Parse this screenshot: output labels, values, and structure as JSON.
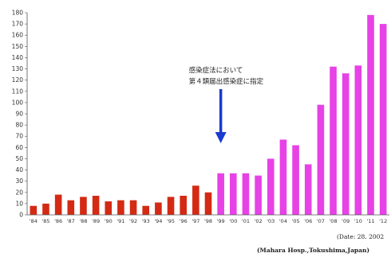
{
  "chart_data": {
    "type": "bar",
    "title": "",
    "xlabel": "",
    "ylabel": "",
    "ylim": [
      0,
      180
    ],
    "yticks": [
      0,
      10,
      20,
      30,
      40,
      50,
      60,
      70,
      80,
      90,
      100,
      110,
      120,
      130,
      140,
      150,
      160,
      170,
      180
    ],
    "grid": false,
    "categories": [
      "'84",
      "'85",
      "'86",
      "'87",
      "'88",
      "'89",
      "'90",
      "'91",
      "'92",
      "'93",
      "'94",
      "'95",
      "'96",
      "'97",
      "'98",
      "'99",
      "'00",
      "'01",
      "'02",
      "'03",
      "'04",
      "'05",
      "'06",
      "'07",
      "'08",
      "'09",
      "'10",
      "'11",
      "'12"
    ],
    "values": [
      8,
      10,
      18,
      13,
      16,
      17,
      12,
      13,
      13,
      8,
      11,
      16,
      17,
      26,
      20,
      37,
      37,
      37,
      35,
      50,
      67,
      62,
      45,
      98,
      132,
      126,
      133,
      178,
      170
    ],
    "colors": [
      "#d42a14",
      "#d42a14",
      "#d42a14",
      "#d42a14",
      "#d42a14",
      "#d42a14",
      "#d42a14",
      "#d42a14",
      "#d42a14",
      "#d42a14",
      "#d42a14",
      "#d42a14",
      "#d42a14",
      "#d42a14",
      "#d42a14",
      "#e642e6",
      "#e642e6",
      "#e642e6",
      "#e642e6",
      "#e642e6",
      "#e642e6",
      "#e642e6",
      "#e642e6",
      "#e642e6",
      "#e642e6",
      "#e642e6",
      "#e642e6",
      "#e642e6",
      "#e642e6"
    ],
    "annotation": {
      "lines": [
        "感染症法において",
        "第４類届出感染症に指定"
      ],
      "at_category": "'99",
      "arrow_color": "#1a3ad0"
    }
  },
  "footer": {
    "date": "(Date: 28. 2002",
    "credit": "(Mahara Hosp.,Tokushima,Japan)"
  }
}
